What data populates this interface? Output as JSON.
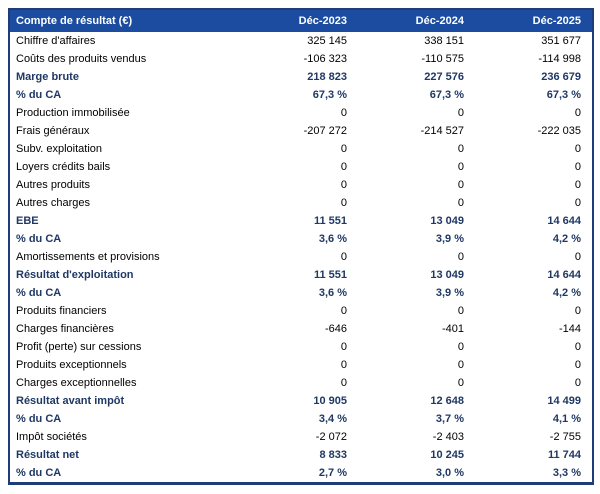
{
  "table": {
    "currency_note": "€",
    "header": [
      "Compte de résultat (€)",
      "Déc-2023",
      "Déc-2024",
      "Déc-2025"
    ],
    "colors": {
      "header_bg": "#1b4c9f",
      "header_text": "#ffffff",
      "border": "#1e3c78",
      "emphasis_text": "#1f3864",
      "body_text": "#000000"
    },
    "rows": [
      {
        "label": "Chiffre d'affaires",
        "values": [
          "325 145",
          "338 151",
          "351 677"
        ],
        "emphasis": false
      },
      {
        "label": "Coûts des produits vendus",
        "values": [
          "-106 323",
          "-110 575",
          "-114 998"
        ],
        "emphasis": false
      },
      {
        "label": "Marge brute",
        "values": [
          "218 823",
          "227 576",
          "236 679"
        ],
        "emphasis": true
      },
      {
        "label": "% du CA",
        "values": [
          "67,3 %",
          "67,3 %",
          "67,3 %"
        ],
        "emphasis": true
      },
      {
        "label": "Production immobilisée",
        "values": [
          "0",
          "0",
          "0"
        ],
        "emphasis": false
      },
      {
        "label": "Frais généraux",
        "values": [
          "-207 272",
          "-214 527",
          "-222 035"
        ],
        "emphasis": false
      },
      {
        "label": "Subv. exploitation",
        "values": [
          "0",
          "0",
          "0"
        ],
        "emphasis": false
      },
      {
        "label": "Loyers crédits bails",
        "values": [
          "0",
          "0",
          "0"
        ],
        "emphasis": false
      },
      {
        "label": "Autres produits",
        "values": [
          "0",
          "0",
          "0"
        ],
        "emphasis": false
      },
      {
        "label": "Autres charges",
        "values": [
          "0",
          "0",
          "0"
        ],
        "emphasis": false
      },
      {
        "label": "EBE",
        "values": [
          "11 551",
          "13 049",
          "14 644"
        ],
        "emphasis": true
      },
      {
        "label": "% du CA",
        "values": [
          "3,6 %",
          "3,9 %",
          "4,2 %"
        ],
        "emphasis": true
      },
      {
        "label": "Amortissements et provisions",
        "values": [
          "0",
          "0",
          "0"
        ],
        "emphasis": false
      },
      {
        "label": "Résultat d'exploitation",
        "values": [
          "11 551",
          "13 049",
          "14 644"
        ],
        "emphasis": true
      },
      {
        "label": "% du CA",
        "values": [
          "3,6 %",
          "3,9 %",
          "4,2 %"
        ],
        "emphasis": true
      },
      {
        "label": "Produits financiers",
        "values": [
          "0",
          "0",
          "0"
        ],
        "emphasis": false
      },
      {
        "label": "Charges financières",
        "values": [
          "-646",
          "-401",
          "-144"
        ],
        "emphasis": false
      },
      {
        "label": "Profit (perte) sur cessions",
        "values": [
          "0",
          "0",
          "0"
        ],
        "emphasis": false
      },
      {
        "label": "Produits exceptionnels",
        "values": [
          "0",
          "0",
          "0"
        ],
        "emphasis": false
      },
      {
        "label": "Charges exceptionnelles",
        "values": [
          "0",
          "0",
          "0"
        ],
        "emphasis": false
      },
      {
        "label": "Résultat avant impôt",
        "values": [
          "10 905",
          "12 648",
          "14 499"
        ],
        "emphasis": true
      },
      {
        "label": "% du CA",
        "values": [
          "3,4 %",
          "3,7 %",
          "4,1 %"
        ],
        "emphasis": true
      },
      {
        "label": "Impôt sociétés",
        "values": [
          "-2 072",
          "-2 403",
          "-2 755"
        ],
        "emphasis": false
      },
      {
        "label": "Résultat net",
        "values": [
          "8 833",
          "10 245",
          "11 744"
        ],
        "emphasis": true
      },
      {
        "label": "% du CA",
        "values": [
          "2,7 %",
          "3,0 %",
          "3,3 %"
        ],
        "emphasis": true
      }
    ]
  }
}
